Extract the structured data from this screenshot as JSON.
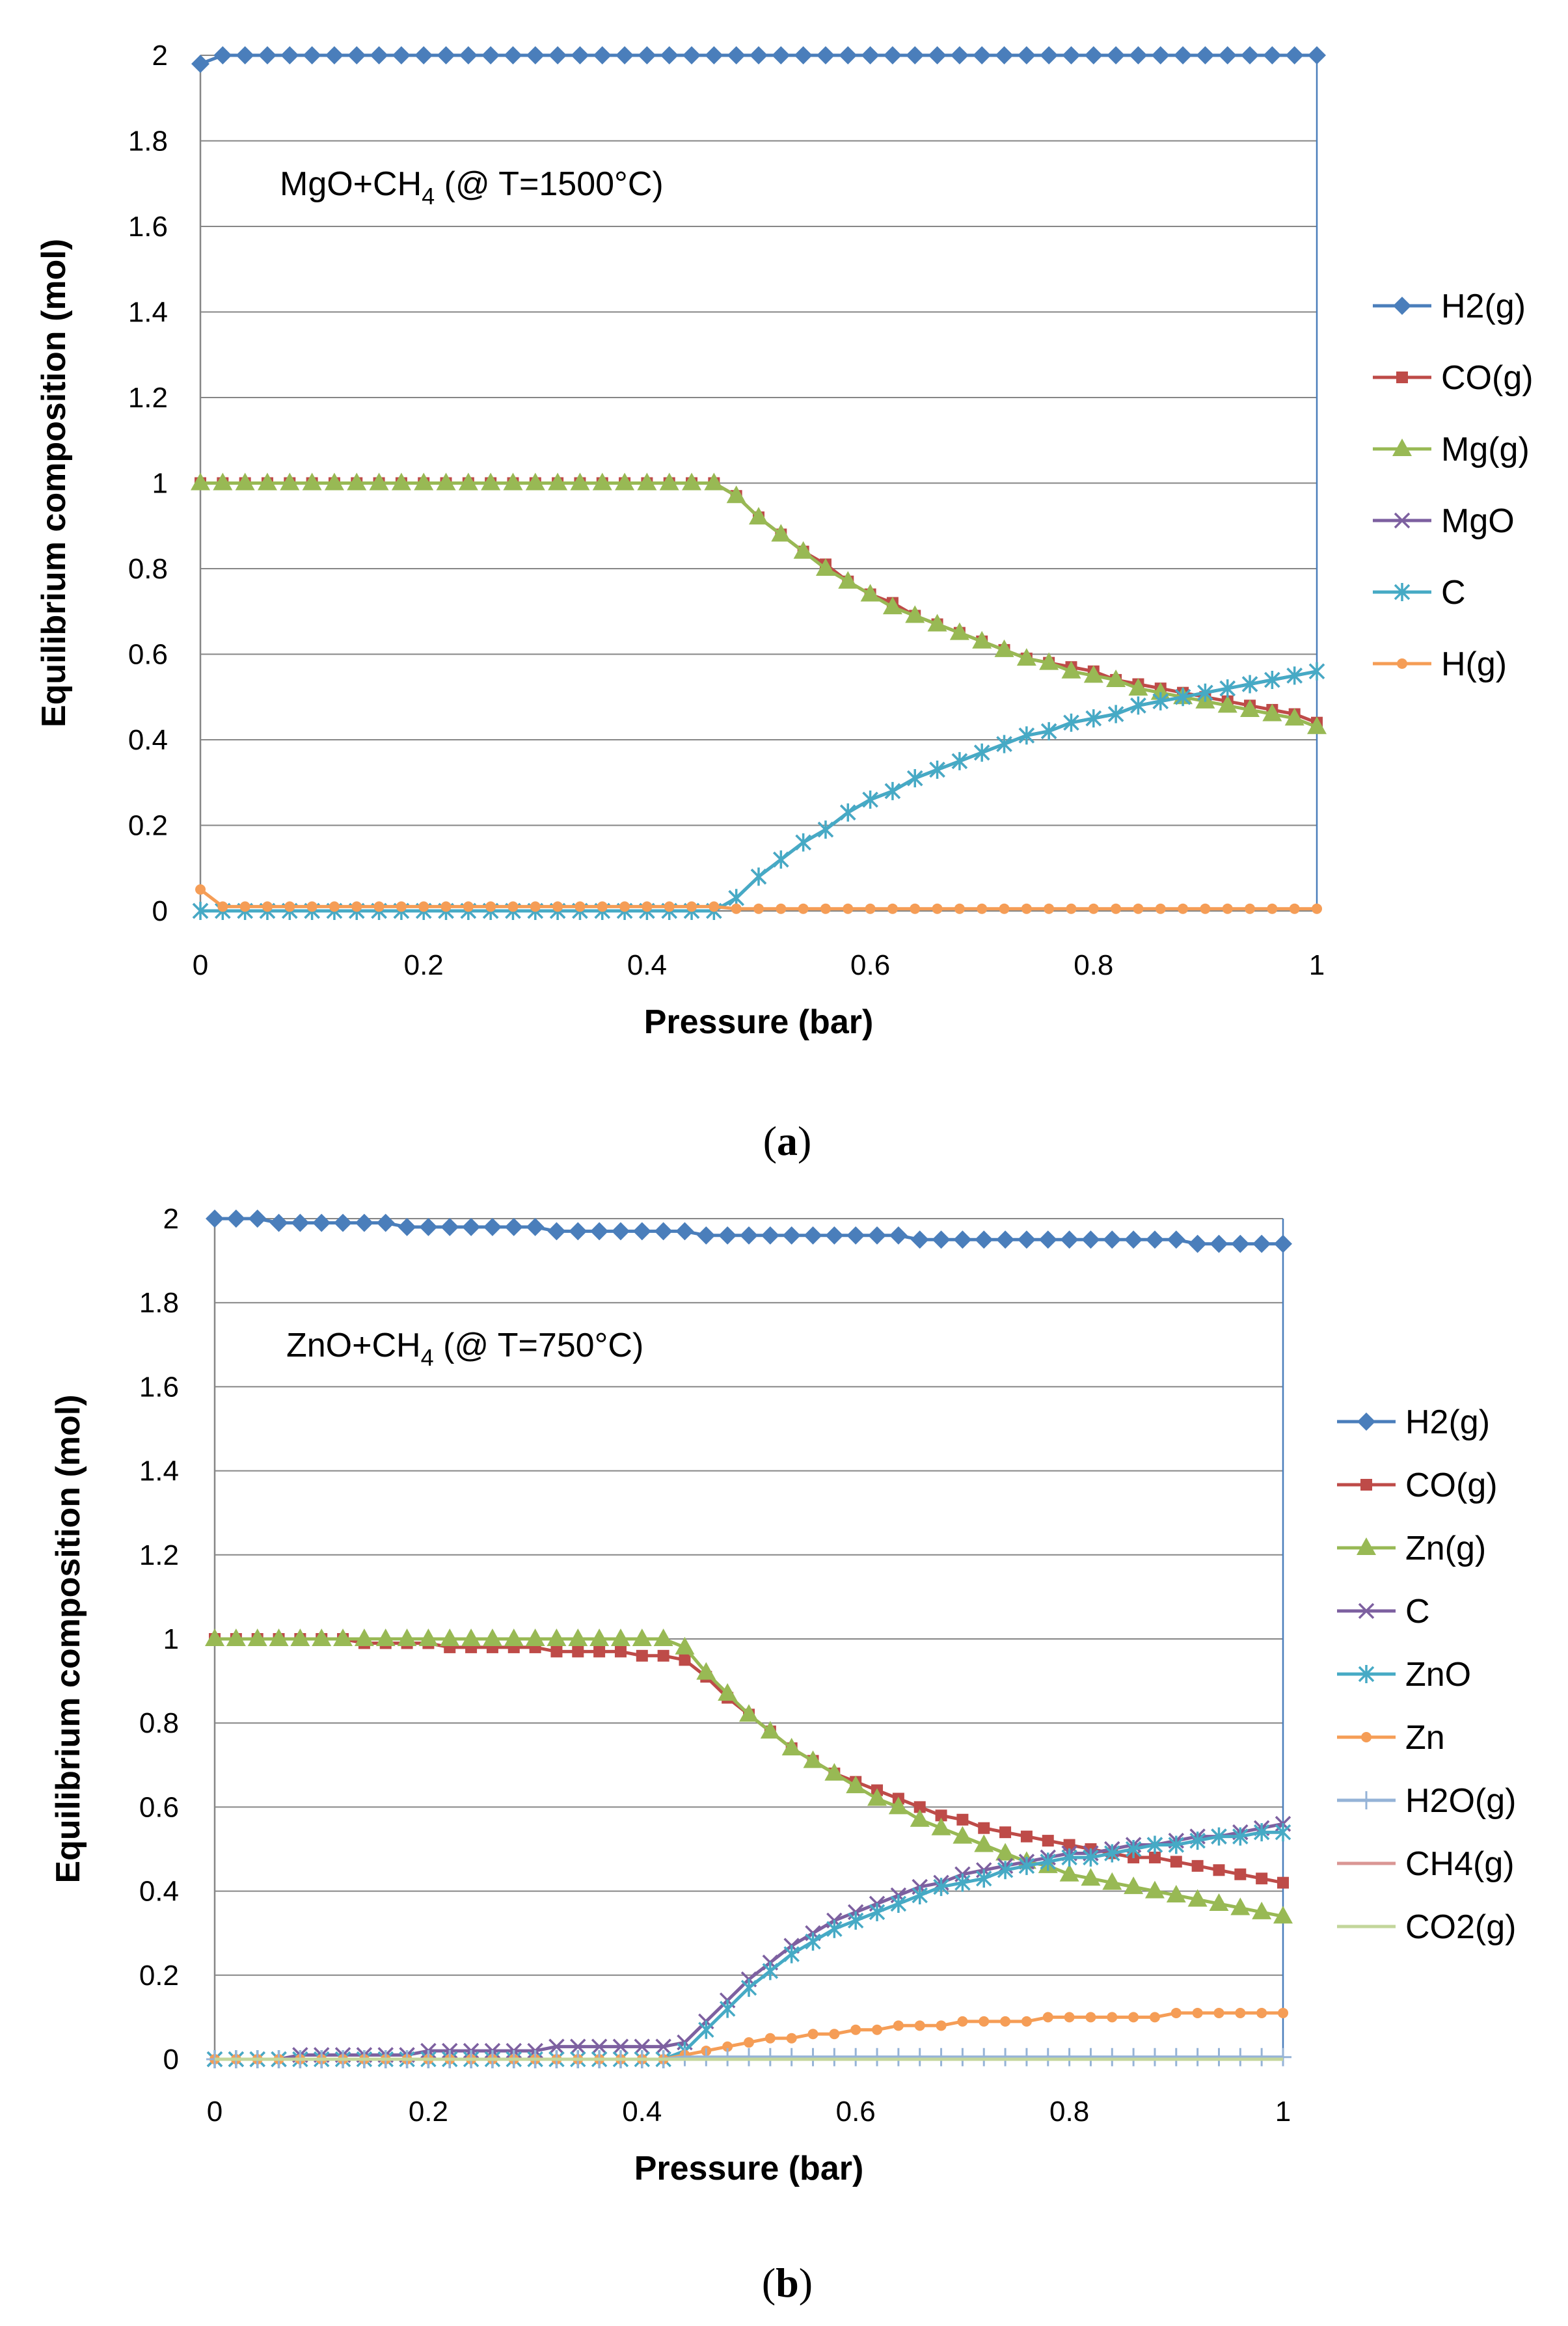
{
  "chart_data": [
    {
      "type": "line",
      "caption": "a",
      "annotation": {
        "prefix": "MgO+CH",
        "sub": "4",
        "suffix": " (@ T=1500°C)"
      },
      "xlabel": "Pressure (bar)",
      "ylabel": "Equilibrium composition (mol)",
      "xlim": [
        0,
        1
      ],
      "ylim": [
        0,
        2
      ],
      "xticks": [
        "0",
        "0.2",
        "0.4",
        "0.6",
        "0.8",
        "1"
      ],
      "yticks": [
        "0",
        "0.2",
        "0.4",
        "0.6",
        "0.8",
        "1",
        "1.2",
        "1.4",
        "1.6",
        "1.8",
        "2"
      ],
      "grid": "horizontal",
      "legend_position": "right",
      "x": [
        0,
        0.02,
        0.04,
        0.06,
        0.08,
        0.1,
        0.12,
        0.14,
        0.16,
        0.18,
        0.2,
        0.22,
        0.24,
        0.26,
        0.28,
        0.3,
        0.32,
        0.34,
        0.36,
        0.38,
        0.4,
        0.42,
        0.44,
        0.46,
        0.48,
        0.5,
        0.52,
        0.54,
        0.56,
        0.58,
        0.6,
        0.62,
        0.64,
        0.66,
        0.68,
        0.7,
        0.72,
        0.74,
        0.76,
        0.78,
        0.8,
        0.82,
        0.84,
        0.86,
        0.88,
        0.9,
        0.92,
        0.94,
        0.96,
        0.98,
        1
      ],
      "series": [
        {
          "name": "H2(g)",
          "color": "#4a7ebb",
          "marker": "diamond",
          "values": [
            1.98,
            2,
            2,
            2,
            2,
            2,
            2,
            2,
            2,
            2,
            2,
            2,
            2,
            2,
            2,
            2,
            2,
            2,
            2,
            2,
            2,
            2,
            2,
            2,
            2,
            2,
            2,
            2,
            2,
            2,
            2,
            2,
            2,
            2,
            2,
            2,
            2,
            2,
            2,
            2,
            2,
            2,
            2,
            2,
            2,
            2,
            2,
            2,
            2,
            2,
            2
          ]
        },
        {
          "name": "CO(g)",
          "color": "#be4b48",
          "marker": "square",
          "values": [
            1,
            1,
            1,
            1,
            1,
            1,
            1,
            1,
            1,
            1,
            1,
            1,
            1,
            1,
            1,
            1,
            1,
            1,
            1,
            1,
            1,
            1,
            1,
            1,
            0.97,
            0.92,
            0.88,
            0.84,
            0.81,
            0.77,
            0.74,
            0.72,
            0.69,
            0.67,
            0.65,
            0.63,
            0.61,
            0.59,
            0.58,
            0.57,
            0.56,
            0.54,
            0.53,
            0.52,
            0.51,
            0.5,
            0.49,
            0.48,
            0.47,
            0.46,
            0.44
          ]
        },
        {
          "name": "Mg(g)",
          "color": "#98b954",
          "marker": "triangle",
          "values": [
            1,
            1,
            1,
            1,
            1,
            1,
            1,
            1,
            1,
            1,
            1,
            1,
            1,
            1,
            1,
            1,
            1,
            1,
            1,
            1,
            1,
            1,
            1,
            1,
            0.97,
            0.92,
            0.88,
            0.84,
            0.8,
            0.77,
            0.74,
            0.71,
            0.69,
            0.67,
            0.65,
            0.63,
            0.61,
            0.59,
            0.58,
            0.56,
            0.55,
            0.54,
            0.52,
            0.51,
            0.5,
            0.49,
            0.48,
            0.47,
            0.46,
            0.45,
            0.43
          ]
        },
        {
          "name": "MgO",
          "color": "#7d60a0",
          "marker": "x",
          "values": [
            0,
            0,
            0,
            0,
            0,
            0,
            0,
            0,
            0,
            0,
            0,
            0,
            0,
            0,
            0,
            0,
            0,
            0,
            0,
            0,
            0,
            0,
            0,
            0,
            0.03,
            0.08,
            0.12,
            0.16,
            0.19,
            0.23,
            0.26,
            0.28,
            0.31,
            0.33,
            0.35,
            0.37,
            0.39,
            0.41,
            0.42,
            0.44,
            0.45,
            0.46,
            0.48,
            0.49,
            0.5,
            0.51,
            0.52,
            0.53,
            0.54,
            0.55,
            0.56
          ]
        },
        {
          "name": "C",
          "color": "#46aac5",
          "marker": "star",
          "values": [
            0,
            0,
            0,
            0,
            0,
            0,
            0,
            0,
            0,
            0,
            0,
            0,
            0,
            0,
            0,
            0,
            0,
            0,
            0,
            0,
            0,
            0,
            0,
            0,
            0.03,
            0.08,
            0.12,
            0.16,
            0.19,
            0.23,
            0.26,
            0.28,
            0.31,
            0.33,
            0.35,
            0.37,
            0.39,
            0.41,
            0.42,
            0.44,
            0.45,
            0.46,
            0.48,
            0.49,
            0.5,
            0.51,
            0.52,
            0.53,
            0.54,
            0.55,
            0.56
          ]
        },
        {
          "name": "H(g)",
          "color": "#f59d56",
          "marker": "circle",
          "values": [
            0.05,
            0.01,
            0.01,
            0.01,
            0.01,
            0.01,
            0.01,
            0.01,
            0.01,
            0.01,
            0.01,
            0.01,
            0.01,
            0.01,
            0.01,
            0.01,
            0.01,
            0.01,
            0.01,
            0.01,
            0.01,
            0.01,
            0.01,
            0.01,
            0.005,
            0.005,
            0.005,
            0.005,
            0.005,
            0.005,
            0.005,
            0.005,
            0.005,
            0.005,
            0.005,
            0.005,
            0.005,
            0.005,
            0.005,
            0.005,
            0.005,
            0.005,
            0.005,
            0.005,
            0.005,
            0.005,
            0.005,
            0.005,
            0.005,
            0.005,
            0.005
          ]
        }
      ]
    },
    {
      "type": "line",
      "caption": "b",
      "annotation": {
        "prefix": "ZnO+CH",
        "sub": "4",
        "suffix": " (@ T=750°C)"
      },
      "xlabel": "Pressure (bar)",
      "ylabel": "Equilibrium composition (mol)",
      "xlim": [
        0,
        1
      ],
      "ylim": [
        0,
        2
      ],
      "xticks": [
        "0",
        "0.2",
        "0.4",
        "0.6",
        "0.8",
        "1"
      ],
      "yticks": [
        "0",
        "0.2",
        "0.4",
        "0.6",
        "0.8",
        "1",
        "1.2",
        "1.4",
        "1.6",
        "1.8",
        "2"
      ],
      "grid": "horizontal",
      "legend_position": "right",
      "x": [
        0,
        0.02,
        0.04,
        0.06,
        0.08,
        0.1,
        0.12,
        0.14,
        0.16,
        0.18,
        0.2,
        0.22,
        0.24,
        0.26,
        0.28,
        0.3,
        0.32,
        0.34,
        0.36,
        0.38,
        0.4,
        0.42,
        0.44,
        0.46,
        0.48,
        0.5,
        0.52,
        0.54,
        0.56,
        0.58,
        0.6,
        0.62,
        0.64,
        0.66,
        0.68,
        0.7,
        0.72,
        0.74,
        0.76,
        0.78,
        0.8,
        0.82,
        0.84,
        0.86,
        0.88,
        0.9,
        0.92,
        0.94,
        0.96,
        0.98,
        1
      ],
      "series": [
        {
          "name": "H2(g)",
          "color": "#4a7ebb",
          "marker": "diamond",
          "values": [
            2,
            2,
            2,
            1.99,
            1.99,
            1.99,
            1.99,
            1.99,
            1.99,
            1.98,
            1.98,
            1.98,
            1.98,
            1.98,
            1.98,
            1.98,
            1.97,
            1.97,
            1.97,
            1.97,
            1.97,
            1.97,
            1.97,
            1.96,
            1.96,
            1.96,
            1.96,
            1.96,
            1.96,
            1.96,
            1.96,
            1.96,
            1.96,
            1.95,
            1.95,
            1.95,
            1.95,
            1.95,
            1.95,
            1.95,
            1.95,
            1.95,
            1.95,
            1.95,
            1.95,
            1.95,
            1.94,
            1.94,
            1.94,
            1.94,
            1.94
          ]
        },
        {
          "name": "CO(g)",
          "color": "#be4b48",
          "marker": "square",
          "values": [
            1,
            1,
            1,
            1,
            1,
            1,
            1,
            0.99,
            0.99,
            0.99,
            0.99,
            0.98,
            0.98,
            0.98,
            0.98,
            0.98,
            0.97,
            0.97,
            0.97,
            0.97,
            0.96,
            0.96,
            0.95,
            0.91,
            0.86,
            0.82,
            0.78,
            0.74,
            0.71,
            0.68,
            0.66,
            0.64,
            0.62,
            0.6,
            0.58,
            0.57,
            0.55,
            0.54,
            0.53,
            0.52,
            0.51,
            0.5,
            0.49,
            0.48,
            0.48,
            0.47,
            0.46,
            0.45,
            0.44,
            0.43,
            0.42
          ]
        },
        {
          "name": "Zn(g)",
          "color": "#98b954",
          "marker": "triangle",
          "values": [
            1,
            1,
            1,
            1,
            1,
            1,
            1,
            1,
            1,
            1,
            1,
            1,
            1,
            1,
            1,
            1,
            1,
            1,
            1,
            1,
            1,
            1,
            0.98,
            0.92,
            0.87,
            0.82,
            0.78,
            0.74,
            0.71,
            0.68,
            0.65,
            0.62,
            0.6,
            0.57,
            0.55,
            0.53,
            0.51,
            0.49,
            0.47,
            0.46,
            0.44,
            0.43,
            0.42,
            0.41,
            0.4,
            0.39,
            0.38,
            0.37,
            0.36,
            0.35,
            0.34
          ]
        },
        {
          "name": "C",
          "color": "#7d60a0",
          "marker": "x",
          "values": [
            0,
            0,
            0,
            0,
            0.01,
            0.01,
            0.01,
            0.01,
            0.01,
            0.01,
            0.02,
            0.02,
            0.02,
            0.02,
            0.02,
            0.02,
            0.03,
            0.03,
            0.03,
            0.03,
            0.03,
            0.03,
            0.04,
            0.09,
            0.14,
            0.19,
            0.23,
            0.27,
            0.3,
            0.33,
            0.35,
            0.37,
            0.39,
            0.41,
            0.42,
            0.44,
            0.45,
            0.46,
            0.47,
            0.48,
            0.49,
            0.49,
            0.5,
            0.51,
            0.51,
            0.52,
            0.53,
            0.53,
            0.54,
            0.55,
            0.56
          ]
        },
        {
          "name": "ZnO",
          "color": "#46aac5",
          "marker": "star",
          "values": [
            0,
            0,
            0,
            0,
            0,
            0,
            0,
            0,
            0,
            0,
            0,
            0,
            0,
            0,
            0,
            0,
            0,
            0,
            0,
            0,
            0,
            0,
            0.02,
            0.07,
            0.12,
            0.17,
            0.21,
            0.25,
            0.28,
            0.31,
            0.33,
            0.35,
            0.37,
            0.39,
            0.41,
            0.42,
            0.43,
            0.45,
            0.46,
            0.47,
            0.48,
            0.48,
            0.49,
            0.5,
            0.51,
            0.51,
            0.52,
            0.53,
            0.53,
            0.54,
            0.54
          ]
        },
        {
          "name": "Zn",
          "color": "#f59d56",
          "marker": "circle",
          "values": [
            0,
            0,
            0,
            0,
            0,
            0,
            0,
            0,
            0,
            0,
            0,
            0,
            0,
            0,
            0,
            0,
            0,
            0,
            0,
            0,
            0,
            0,
            0.01,
            0.02,
            0.03,
            0.04,
            0.05,
            0.05,
            0.06,
            0.06,
            0.07,
            0.07,
            0.08,
            0.08,
            0.08,
            0.09,
            0.09,
            0.09,
            0.09,
            0.1,
            0.1,
            0.1,
            0.1,
            0.1,
            0.1,
            0.11,
            0.11,
            0.11,
            0.11,
            0.11,
            0.11
          ]
        },
        {
          "name": "H2O(g)",
          "color": "#95b3d7",
          "marker": "plus",
          "values": [
            0,
            0,
            0,
            0,
            0,
            0,
            0,
            0,
            0,
            0,
            0,
            0,
            0,
            0,
            0,
            0,
            0,
            0,
            0,
            0,
            0,
            0,
            0.005,
            0.005,
            0.005,
            0.005,
            0.005,
            0.005,
            0.005,
            0.005,
            0.005,
            0.005,
            0.005,
            0.005,
            0.005,
            0.005,
            0.005,
            0.005,
            0.005,
            0.005,
            0.005,
            0.005,
            0.005,
            0.005,
            0.005,
            0.005,
            0.005,
            0.005,
            0.005,
            0.005,
            0.005
          ]
        },
        {
          "name": "CH4(g)",
          "color": "#da9694",
          "marker": "line",
          "values": [
            0,
            0,
            0,
            0,
            0,
            0,
            0,
            0,
            0,
            0,
            0,
            0,
            0,
            0,
            0,
            0,
            0,
            0,
            0,
            0,
            0,
            0,
            0,
            0,
            0,
            0,
            0,
            0,
            0,
            0,
            0,
            0,
            0,
            0,
            0,
            0,
            0,
            0,
            0,
            0,
            0,
            0,
            0,
            0,
            0,
            0,
            0,
            0,
            0,
            0,
            0
          ]
        },
        {
          "name": "CO2(g)",
          "color": "#c3d69b",
          "marker": "line",
          "values": [
            0,
            0,
            0,
            0,
            0,
            0,
            0,
            0,
            0,
            0,
            0,
            0,
            0,
            0,
            0,
            0,
            0,
            0,
            0,
            0,
            0,
            0,
            0,
            0,
            0,
            0,
            0,
            0,
            0,
            0,
            0,
            0,
            0,
            0,
            0,
            0,
            0,
            0,
            0,
            0,
            0,
            0,
            0,
            0,
            0,
            0,
            0,
            0,
            0,
            0,
            0
          ]
        }
      ]
    }
  ]
}
